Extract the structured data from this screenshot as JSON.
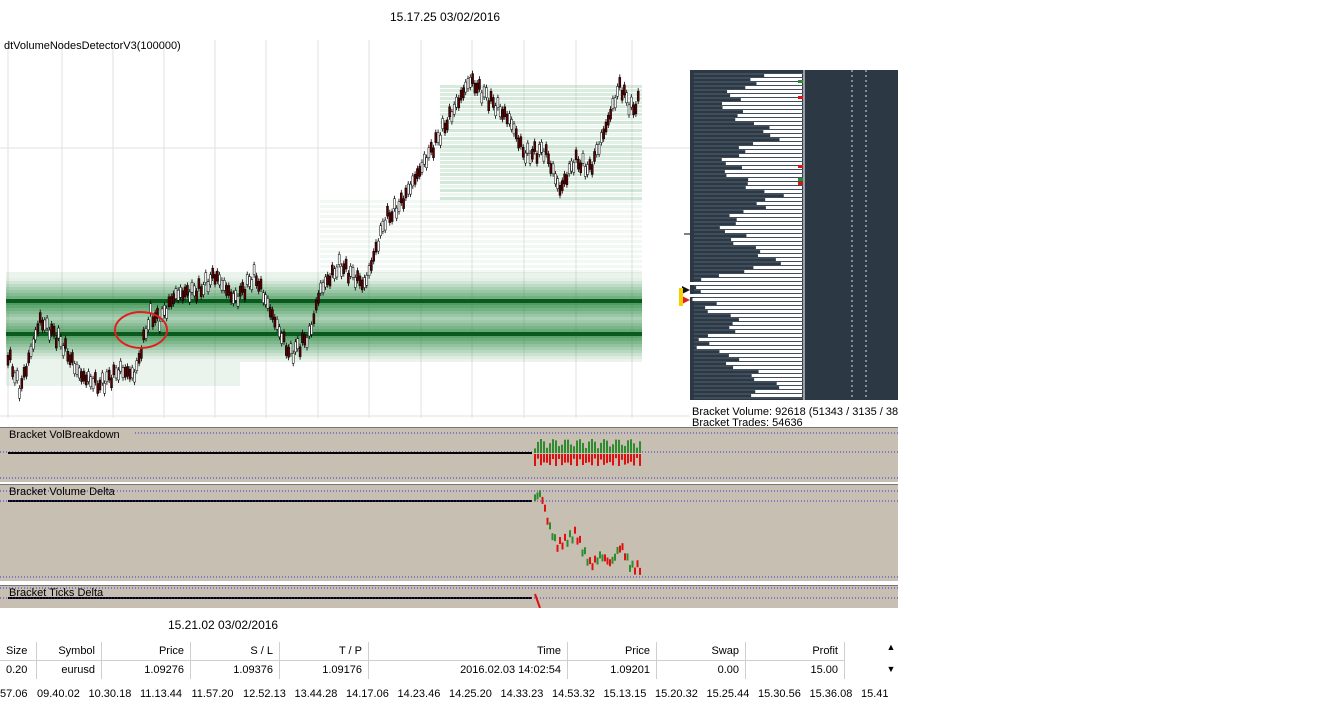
{
  "top_timestamp": "15.17.25 03/02/2016",
  "indicator_name": "dtVolumeNodesDetectorV3(100000)",
  "bracket_volume": "Bracket Volume: 92618 (51343 / 3135 / 38",
  "bracket_trades": "Bracket Trades: 54636",
  "panels": {
    "vol_breakdown": "Bracket VolBreakdown",
    "volume_delta": "Bracket Volume Delta",
    "ticks_delta": "Bracket Ticks Delta"
  },
  "bottom_timestamp": "15.21.02 03/02/2016",
  "trades_table": {
    "headers": [
      "Size",
      "Symbol",
      "Price",
      "S / L",
      "T / P",
      "Time",
      "Price",
      "Swap",
      "Profit"
    ],
    "rows": [
      [
        "0.20",
        "eurusd",
        "1.09276",
        "1.09376",
        "1.09176",
        "2016.02.03 14:02:54",
        "1.09201",
        "0.00",
        "15.00"
      ]
    ]
  },
  "time_axis": [
    "57.06",
    "09.40.02",
    "10.30.18",
    "11.13.44",
    "11.57.20",
    "12.52.13",
    "13.44.28",
    "14.17.06",
    "14.23.46",
    "14.25.20",
    "14.33.23",
    "14.53.32",
    "15.13.15",
    "15.20.32",
    "15.25.44",
    "15.30.56",
    "15.36.08",
    "15.41"
  ],
  "colors": {
    "node_dark": "#0a5a1e",
    "node_light": "#d6eadb",
    "panel_bg": "#c8bfb3",
    "profile_bg": "#2c3945",
    "up_bar": "#2e8b2e",
    "down_bar": "#e01010"
  }
}
